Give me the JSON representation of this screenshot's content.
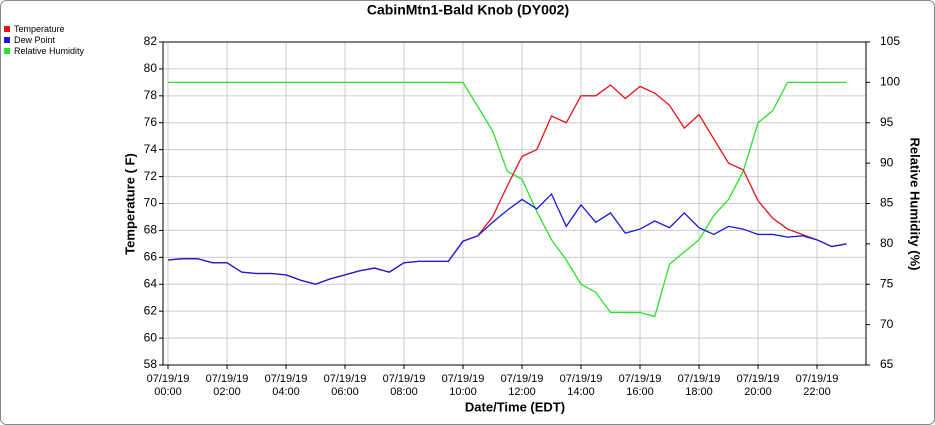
{
  "chart_data": {
    "type": "line",
    "title": "CabinMtn1-Bald Knob (DY002)",
    "x_label": "Date/Time (EDT)",
    "y_label": "Temperature ( F)",
    "y2_label": "Relative Humidity (%)",
    "x": [
      0,
      0.5,
      1,
      1.5,
      2,
      2.5,
      3,
      3.5,
      4,
      4.5,
      5,
      5.5,
      6,
      6.5,
      7,
      7.5,
      8,
      8.5,
      9,
      9.5,
      10,
      10.5,
      11,
      11.5,
      12,
      12.5,
      13,
      13.5,
      14,
      14.5,
      15,
      15.5,
      16,
      16.5,
      17,
      17.5,
      18,
      18.5,
      19,
      19.5,
      20,
      20.5,
      21,
      21.5,
      22,
      22.5,
      23
    ],
    "xlim": [
      -0.17,
      23.66
    ],
    "xticks": [
      {
        "value": 0,
        "label": "07/19/19\n00:00"
      },
      {
        "value": 2,
        "label": "07/19/19\n02:00"
      },
      {
        "value": 4,
        "label": "07/19/19\n04:00"
      },
      {
        "value": 6,
        "label": "07/19/19\n06:00"
      },
      {
        "value": 8,
        "label": "07/19/19\n08:00"
      },
      {
        "value": 10,
        "label": "07/19/19\n10:00"
      },
      {
        "value": 12,
        "label": "07/19/19\n12:00"
      },
      {
        "value": 14,
        "label": "07/19/19\n14:00"
      },
      {
        "value": 16,
        "label": "07/19/19\n16:00"
      },
      {
        "value": 18,
        "label": "07/19/19\n18:00"
      },
      {
        "value": 20,
        "label": "07/19/19\n20:00"
      },
      {
        "value": 22,
        "label": "07/19/19\n22:00"
      }
    ],
    "ylim": [
      58,
      82
    ],
    "yticks": [
      58,
      60,
      62,
      64,
      66,
      68,
      70,
      72,
      74,
      76,
      78,
      80,
      82
    ],
    "y2lim": [
      65,
      105
    ],
    "y2ticks": [
      65,
      70,
      75,
      80,
      85,
      90,
      95,
      100,
      105
    ],
    "grid": true,
    "legend": "top-left",
    "series": [
      {
        "name": "Temperature",
        "color": "#e3131b",
        "values": [
          65.8,
          65.9,
          65.9,
          65.6,
          65.6,
          64.9,
          64.8,
          64.8,
          64.7,
          64.3,
          64.0,
          64.4,
          64.7,
          65.0,
          65.2,
          64.9,
          65.6,
          65.7,
          65.7,
          65.7,
          67.2,
          67.6,
          69.0,
          71.3,
          73.5,
          74.0,
          76.5,
          76.0,
          78.0,
          78.0,
          78.8,
          77.8,
          78.7,
          78.2,
          77.3,
          75.6,
          76.6,
          74.8,
          73.0,
          72.5,
          70.2,
          68.9,
          68.1,
          67.7,
          67.3,
          66.8,
          67.0
        ]
      },
      {
        "name": "Dew Point",
        "color": "#1a1adb",
        "values": [
          65.8,
          65.9,
          65.9,
          65.6,
          65.6,
          64.9,
          64.8,
          64.8,
          64.7,
          64.3,
          64.0,
          64.4,
          64.7,
          65.0,
          65.2,
          64.9,
          65.6,
          65.7,
          65.7,
          65.7,
          67.2,
          67.6,
          68.6,
          69.5,
          70.3,
          69.6,
          70.7,
          68.3,
          69.9,
          68.6,
          69.3,
          67.8,
          68.1,
          68.7,
          68.2,
          69.3,
          68.2,
          67.7,
          68.3,
          68.1,
          67.7,
          67.7,
          67.5,
          67.6,
          67.3,
          66.8,
          67.0
        ]
      },
      {
        "name": "Relative Humidity",
        "color": "#2ee02e",
        "axis": "y2",
        "values": [
          100,
          100,
          100,
          100,
          100,
          100,
          100,
          100,
          100,
          100,
          100,
          100,
          100,
          100,
          100,
          100,
          100,
          100,
          100,
          100,
          100,
          97,
          94,
          89,
          88,
          84,
          80.5,
          78,
          75,
          74,
          71.5,
          71.5,
          71.5,
          71,
          77.5,
          79,
          80.5,
          83.5,
          85.5,
          89,
          95,
          96.5,
          100,
          100,
          100,
          100,
          100
        ]
      }
    ]
  }
}
